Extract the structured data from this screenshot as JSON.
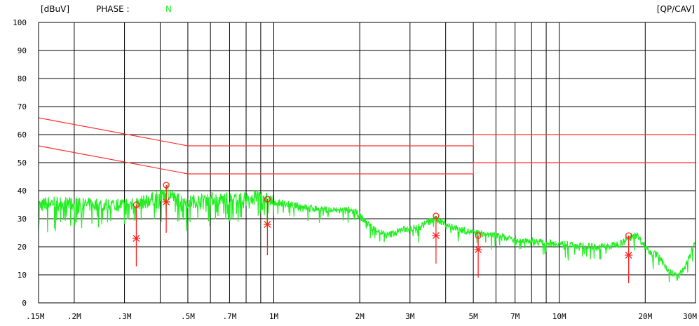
{
  "header": {
    "unit": "[dBuV]",
    "phase_label": "PHASE :",
    "phase_value": "N",
    "detector": "[QP/CAV]"
  },
  "colors": {
    "trace": "#22ee22",
    "limit": "#ff3030",
    "marker": "#ff2020",
    "grid": "#000000",
    "phase_value": "#22ee22"
  },
  "chart_data": {
    "type": "line",
    "x_scale": "log",
    "y_range": [
      0,
      100
    ],
    "x_range_mhz": [
      0.15,
      30
    ],
    "y_ticks": [
      "0",
      "10",
      "20",
      "30",
      "40",
      "50",
      "60",
      "70",
      "80",
      "90",
      "100"
    ],
    "x_ticks": [
      {
        "label": ".15M",
        "mhz": 0.15
      },
      {
        "label": ".2M",
        "mhz": 0.2
      },
      {
        "label": ".3M",
        "mhz": 0.3
      },
      {
        "label": ".5M",
        "mhz": 0.5
      },
      {
        "label": ".7M",
        "mhz": 0.7
      },
      {
        "label": "1M",
        "mhz": 1
      },
      {
        "label": "2M",
        "mhz": 2
      },
      {
        "label": "3M",
        "mhz": 3
      },
      {
        "label": "5M",
        "mhz": 5
      },
      {
        "label": "7M",
        "mhz": 7
      },
      {
        "label": "10M",
        "mhz": 10
      },
      {
        "label": "20M",
        "mhz": 20
      },
      {
        "label": "30M",
        "mhz": 30
      }
    ],
    "grid_mhz": [
      0.15,
      0.2,
      0.3,
      0.4,
      0.5,
      0.6,
      0.7,
      0.8,
      0.9,
      1,
      2,
      3,
      4,
      5,
      6,
      7,
      8,
      9,
      10,
      20,
      30
    ],
    "limits": [
      {
        "points": [
          [
            0.15,
            66
          ],
          [
            0.5,
            56
          ],
          [
            5,
            56
          ],
          [
            5,
            60
          ],
          [
            30,
            60
          ]
        ]
      },
      {
        "points": [
          [
            0.15,
            56
          ],
          [
            0.5,
            46
          ],
          [
            5,
            46
          ],
          [
            5,
            50
          ],
          [
            30,
            50
          ]
        ]
      }
    ],
    "trace_envelope": [
      [
        0.15,
        35
      ],
      [
        0.17,
        36
      ],
      [
        0.2,
        35
      ],
      [
        0.25,
        35
      ],
      [
        0.3,
        35
      ],
      [
        0.35,
        36
      ],
      [
        0.4,
        38
      ],
      [
        0.42,
        41
      ],
      [
        0.45,
        37
      ],
      [
        0.5,
        36
      ],
      [
        0.6,
        37
      ],
      [
        0.7,
        37
      ],
      [
        0.8,
        37
      ],
      [
        0.9,
        38
      ],
      [
        1.0,
        36
      ],
      [
        1.3,
        34
      ],
      [
        1.6,
        33
      ],
      [
        1.9,
        33
      ],
      [
        2.0,
        31
      ],
      [
        2.2,
        27
      ],
      [
        2.5,
        24
      ],
      [
        2.8,
        26
      ],
      [
        3.2,
        27
      ],
      [
        3.7,
        30
      ],
      [
        4.2,
        27
      ],
      [
        5.0,
        25
      ],
      [
        6.0,
        24
      ],
      [
        7.0,
        23
      ],
      [
        8.0,
        22
      ],
      [
        10.0,
        21
      ],
      [
        13.0,
        20
      ],
      [
        15.0,
        20
      ],
      [
        17.0,
        22
      ],
      [
        18.5,
        25
      ],
      [
        20.0,
        20
      ],
      [
        22.0,
        17
      ],
      [
        24.0,
        12
      ],
      [
        26.0,
        9
      ],
      [
        28.0,
        14
      ],
      [
        30.0,
        22
      ]
    ],
    "markers": [
      {
        "mhz": 0.33,
        "qp": 35,
        "av": 23,
        "low": 13
      },
      {
        "mhz": 0.42,
        "qp": 42,
        "av": 36,
        "low": 25
      },
      {
        "mhz": 0.95,
        "qp": 37,
        "av": 28,
        "low": 17
      },
      {
        "mhz": 3.7,
        "qp": 31,
        "av": 24,
        "low": 14
      },
      {
        "mhz": 5.2,
        "qp": 24,
        "av": 19,
        "low": 9
      },
      {
        "mhz": 17.5,
        "qp": 24,
        "av": 17,
        "low": 7
      }
    ]
  }
}
